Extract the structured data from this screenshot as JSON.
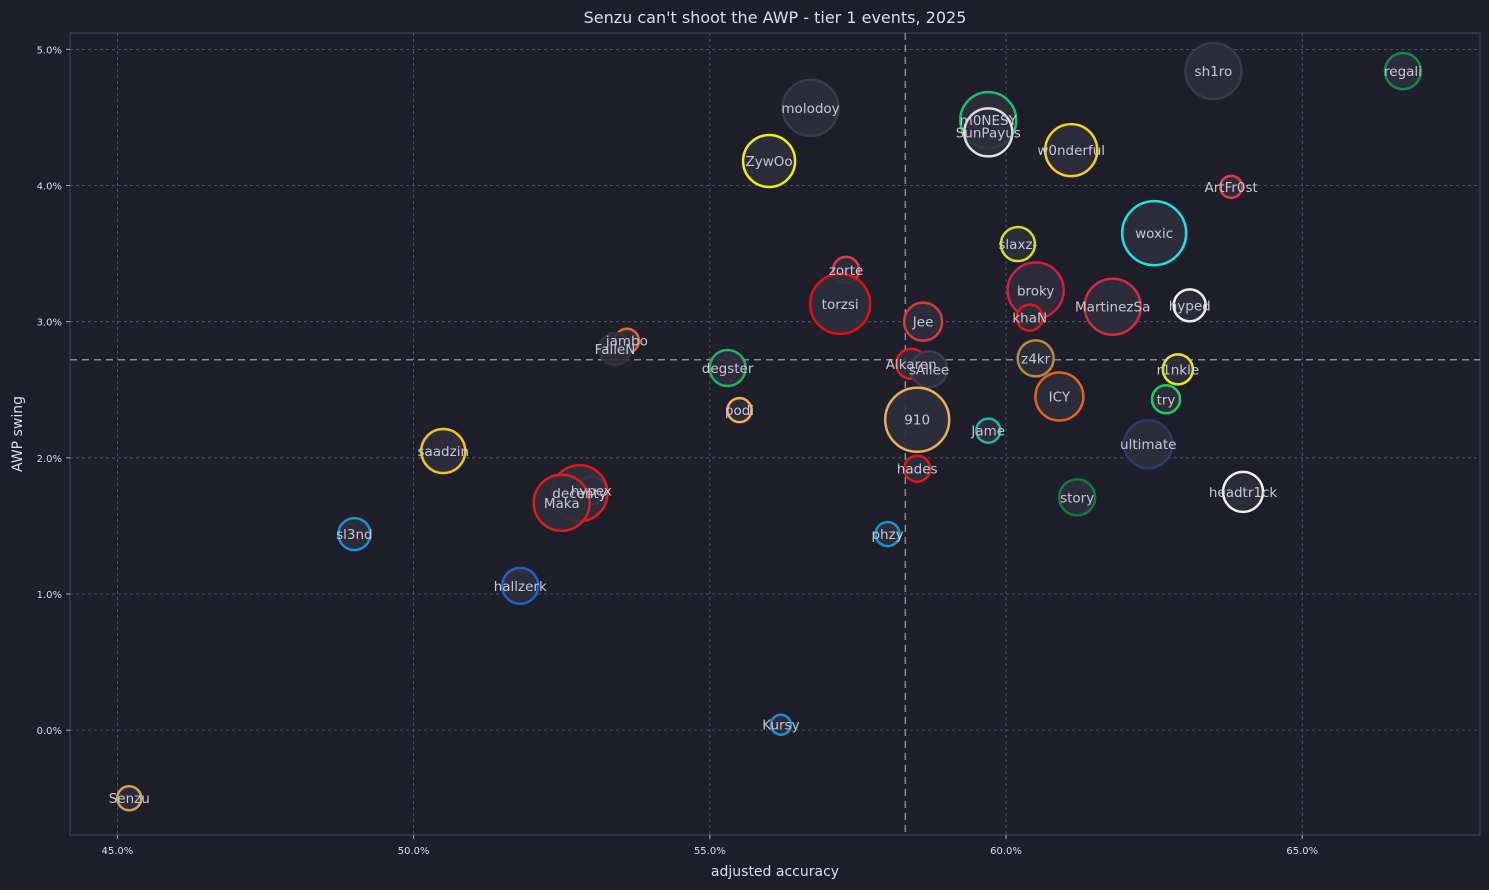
{
  "chart_data": {
    "type": "scatter",
    "title": "Senzu can't shoot the AWP - tier 1 events, 2025",
    "xlabel": "adjusted accuracy",
    "ylabel": "AWP swing",
    "xlim": [
      44.2,
      68.0
    ],
    "ylim": [
      -0.77,
      5.12
    ],
    "xticks": [
      45,
      50,
      55,
      60,
      65
    ],
    "xtick_labels": [
      "45.0%",
      "50.0%",
      "55.0%",
      "60.0%",
      "65.0%"
    ],
    "yticks": [
      0,
      1,
      2,
      3,
      4,
      5
    ],
    "ytick_labels": [
      "0.0%",
      "1.0%",
      "2.0%",
      "3.0%",
      "4.0%",
      "5.0%"
    ],
    "grid": true,
    "reference_lines": {
      "x": 58.3,
      "y": 2.72
    },
    "points": [
      {
        "name": "sh1ro",
        "x": 63.5,
        "y": 4.84,
        "size": 28,
        "color": "#3a3a44"
      },
      {
        "name": "regali",
        "x": 66.7,
        "y": 4.84,
        "size": 18,
        "color": "#0f8a4a"
      },
      {
        "name": "molodoy",
        "x": 56.7,
        "y": 4.57,
        "size": 28,
        "color": "#3a3a44"
      },
      {
        "name": "m0NESY",
        "x": 59.7,
        "y": 4.48,
        "size": 28,
        "color": "#1fbf6a"
      },
      {
        "name": "SunPayus",
        "x": 59.7,
        "y": 4.39,
        "size": 24,
        "color": "#dddddd"
      },
      {
        "name": "w0nderful",
        "x": 61.1,
        "y": 4.26,
        "size": 26,
        "color": "#f2d21c"
      },
      {
        "name": "ZywOo",
        "x": 56.0,
        "y": 4.18,
        "size": 26,
        "color": "#ecf00a"
      },
      {
        "name": "ArtFr0st",
        "x": 63.8,
        "y": 3.99,
        "size": 11,
        "color": "#e23a4a"
      },
      {
        "name": "woxic",
        "x": 62.5,
        "y": 3.65,
        "size": 32,
        "color": "#1ee3e3"
      },
      {
        "name": "slaxz-",
        "x": 60.2,
        "y": 3.57,
        "size": 17,
        "color": "#cfe01e"
      },
      {
        "name": "zorte",
        "x": 57.3,
        "y": 3.38,
        "size": 13,
        "color": "#e03a4a"
      },
      {
        "name": "broky",
        "x": 60.5,
        "y": 3.23,
        "size": 28,
        "color": "#d41c3c"
      },
      {
        "name": "torzsi",
        "x": 57.2,
        "y": 3.13,
        "size": 30,
        "color": "#e01010"
      },
      {
        "name": "MartinezSa",
        "x": 61.8,
        "y": 3.11,
        "size": 28,
        "color": "#d42a40"
      },
      {
        "name": "hyped",
        "x": 63.1,
        "y": 3.12,
        "size": 16,
        "color": "#f0f0f0"
      },
      {
        "name": "khaN",
        "x": 60.4,
        "y": 3.03,
        "size": 13,
        "color": "#e01818"
      },
      {
        "name": "Jee",
        "x": 58.6,
        "y": 3.0,
        "size": 19,
        "color": "#d83a3a"
      },
      {
        "name": "jambo",
        "x": 53.6,
        "y": 2.86,
        "size": 12,
        "color": "#e8682a"
      },
      {
        "name": "FalleN",
        "x": 53.4,
        "y": 2.8,
        "size": 16,
        "color": "#333338"
      },
      {
        "name": "z4kr",
        "x": 60.5,
        "y": 2.73,
        "size": 18,
        "color": "#b58a40"
      },
      {
        "name": "Alkaren",
        "x": 58.4,
        "y": 2.69,
        "size": 15,
        "color": "#e01818"
      },
      {
        "name": "sAllee",
        "x": 58.7,
        "y": 2.65,
        "size": 18,
        "color": "#3a3a5a"
      },
      {
        "name": "degster",
        "x": 55.3,
        "y": 2.66,
        "size": 18,
        "color": "#1fb060"
      },
      {
        "name": "r1nkle",
        "x": 62.9,
        "y": 2.65,
        "size": 15,
        "color": "#e6e61e"
      },
      {
        "name": "ICY",
        "x": 60.9,
        "y": 2.45,
        "size": 24,
        "color": "#e8601c"
      },
      {
        "name": "try",
        "x": 62.7,
        "y": 2.43,
        "size": 14,
        "color": "#1fd060"
      },
      {
        "name": "podi",
        "x": 55.5,
        "y": 2.35,
        "size": 12,
        "color": "#f0b050"
      },
      {
        "name": "910",
        "x": 58.5,
        "y": 2.28,
        "size": 32,
        "color": "#e8b050"
      },
      {
        "name": "Jame",
        "x": 59.7,
        "y": 2.2,
        "size": 12,
        "color": "#1fb8a0"
      },
      {
        "name": "ultimate",
        "x": 62.4,
        "y": 2.1,
        "size": 24,
        "color": "#2a3a6a"
      },
      {
        "name": "saadzin",
        "x": 50.5,
        "y": 2.05,
        "size": 22,
        "color": "#f0c020"
      },
      {
        "name": "hades",
        "x": 58.5,
        "y": 1.92,
        "size": 13,
        "color": "#e01818"
      },
      {
        "name": "headtr1ck",
        "x": 64.0,
        "y": 1.75,
        "size": 20,
        "color": "#f0f0f0"
      },
      {
        "name": "hypex",
        "x": 53.0,
        "y": 1.76,
        "size": 14,
        "color": "#1e90d0"
      },
      {
        "name": "decenty",
        "x": 52.8,
        "y": 1.74,
        "size": 28,
        "color": "#e01818"
      },
      {
        "name": "story",
        "x": 61.2,
        "y": 1.71,
        "size": 18,
        "color": "#0f7a40"
      },
      {
        "name": "Maka",
        "x": 52.5,
        "y": 1.67,
        "size": 28,
        "color": "#d42020"
      },
      {
        "name": "sl3nd",
        "x": 49.0,
        "y": 1.44,
        "size": 16,
        "color": "#1e8fd0"
      },
      {
        "name": "phzy",
        "x": 58.0,
        "y": 1.44,
        "size": 12,
        "color": "#1e90d0"
      },
      {
        "name": "hallzerk",
        "x": 51.8,
        "y": 1.06,
        "size": 18,
        "color": "#1e5fd0"
      },
      {
        "name": "Kursy",
        "x": 56.2,
        "y": 0.04,
        "size": 10,
        "color": "#1e8fd0"
      },
      {
        "name": "Senzu",
        "x": 45.2,
        "y": -0.5,
        "size": 12,
        "color": "#d0a050"
      }
    ]
  }
}
